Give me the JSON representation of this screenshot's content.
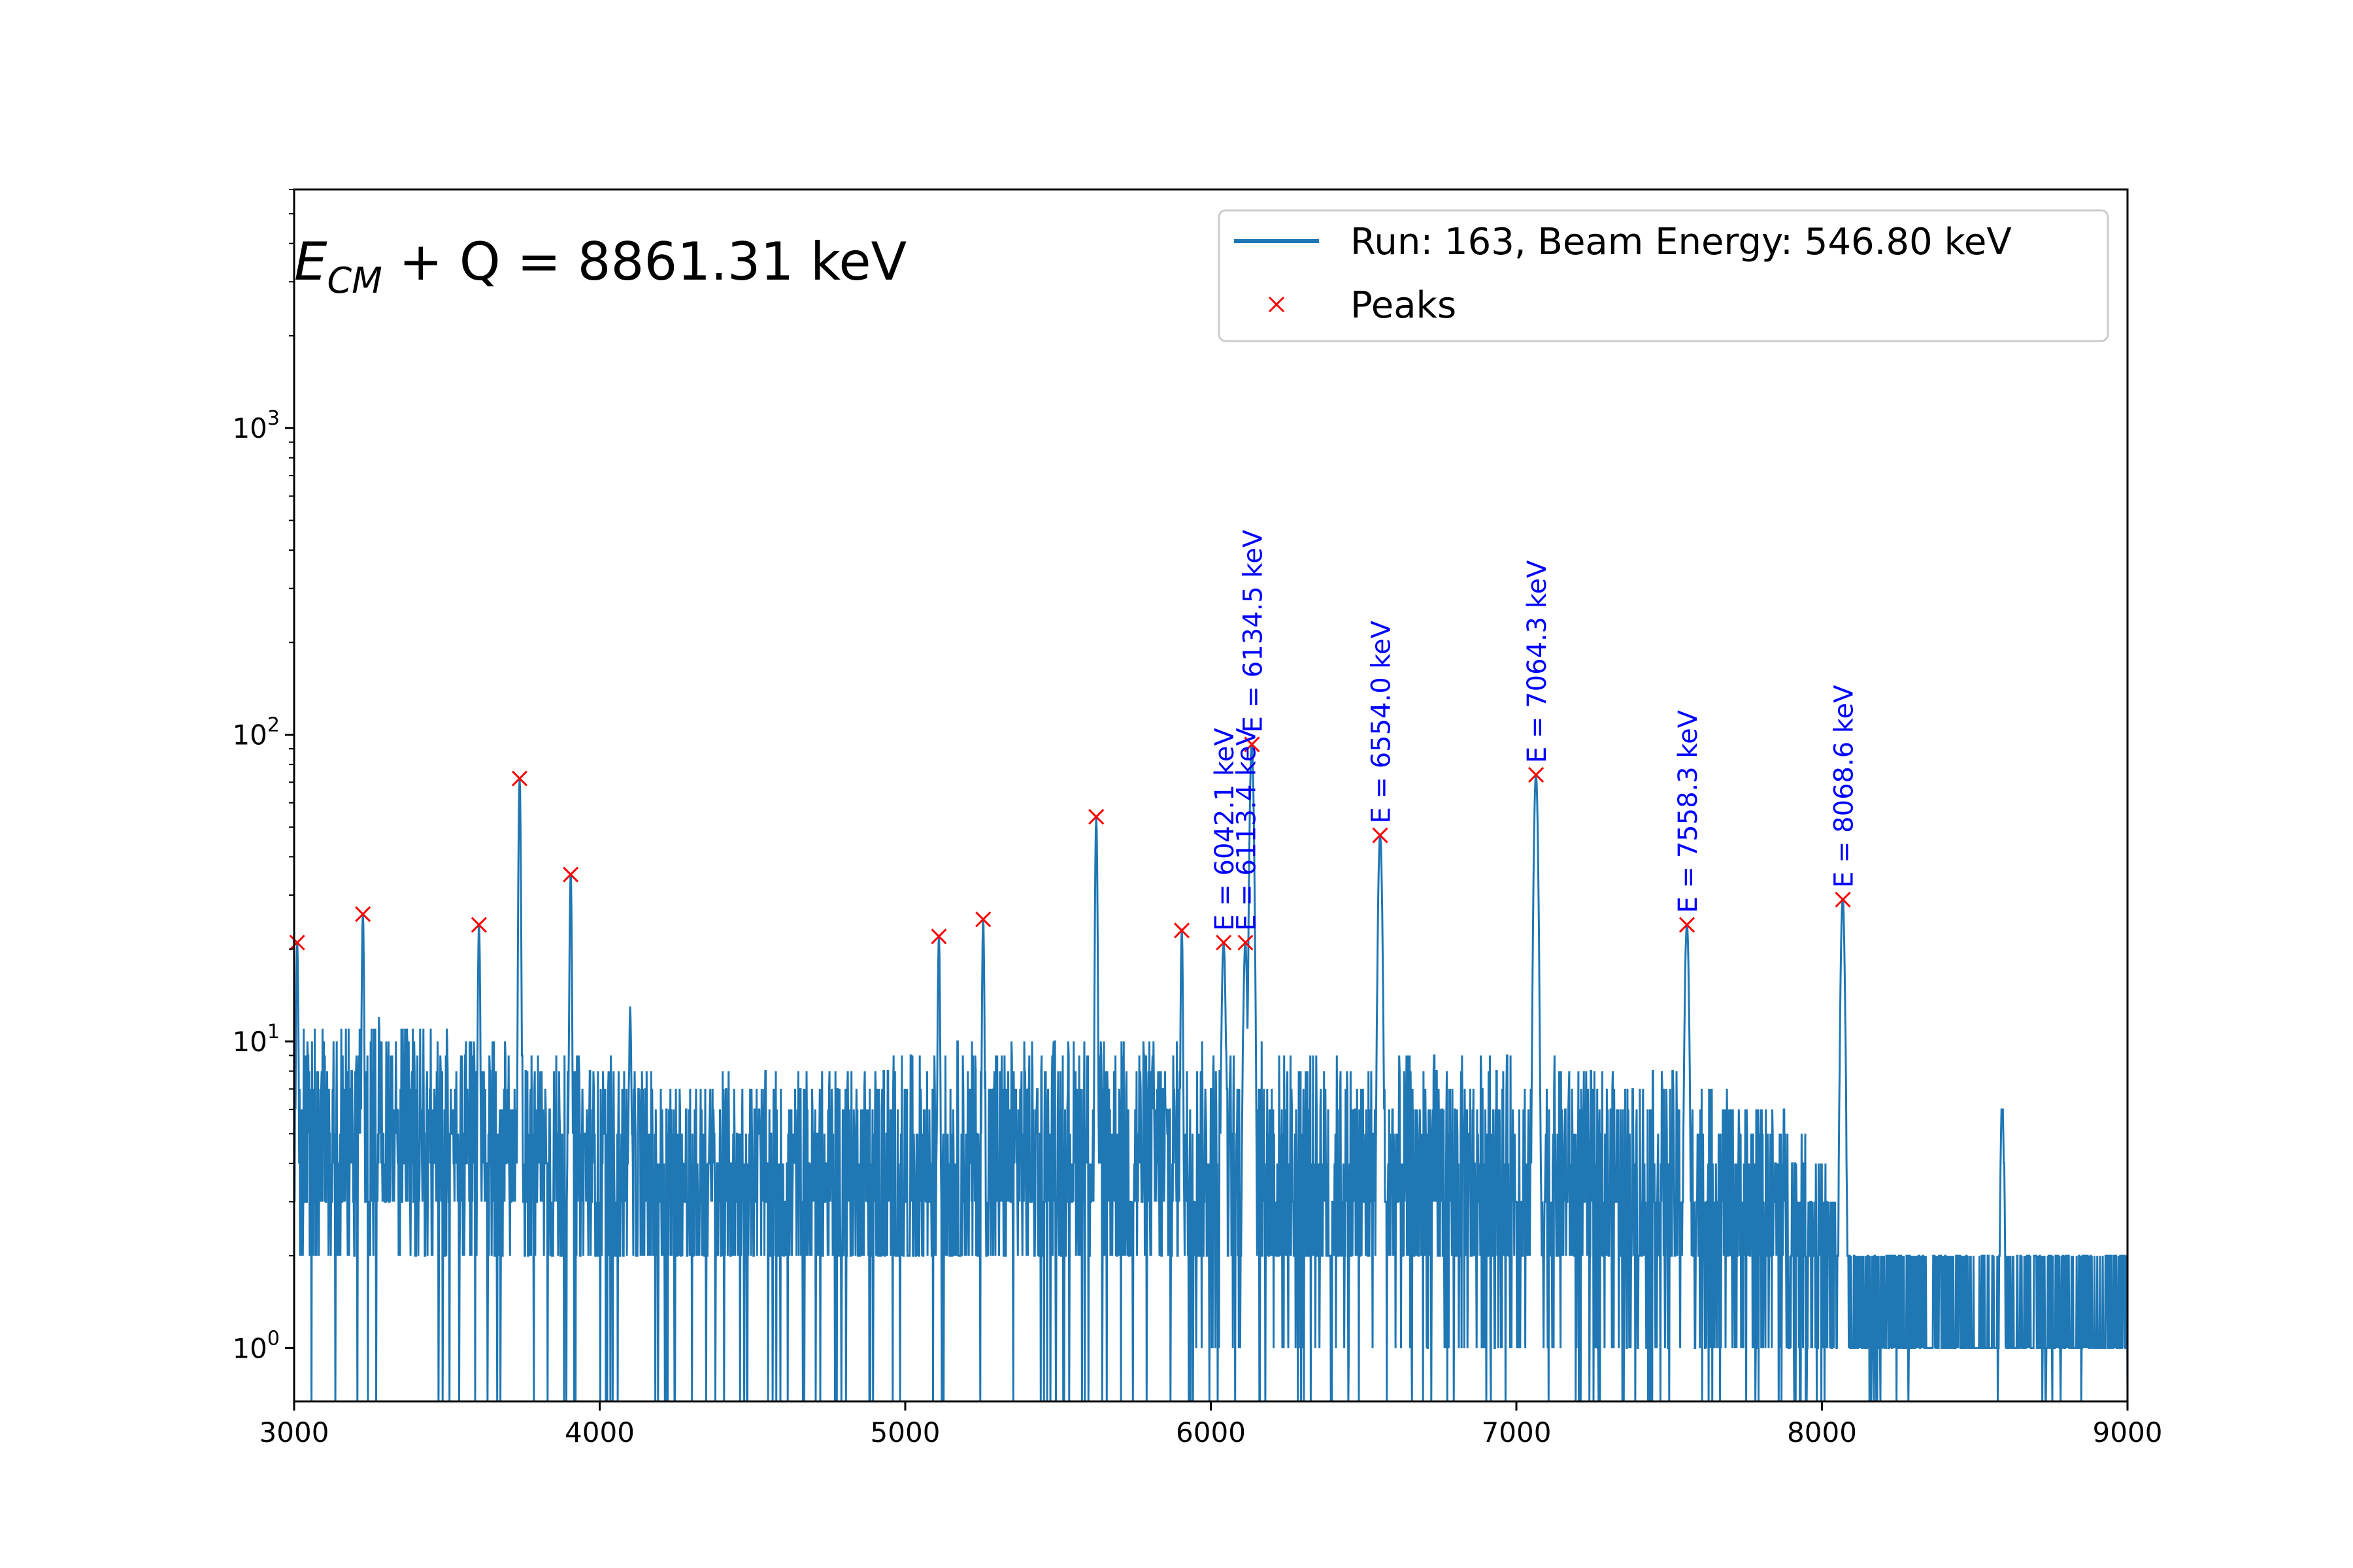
{
  "chart_data": {
    "type": "line",
    "title": "",
    "xlabel": "",
    "ylabel": "",
    "xlim": [
      3000,
      9000
    ],
    "ylim": [
      0.67,
      6000
    ],
    "yscale": "log",
    "grid": false,
    "legend_position": "top-right",
    "x_ticks": [
      "3000",
      "4000",
      "5000",
      "6000",
      "7000",
      "8000",
      "9000"
    ],
    "y_ticks": [
      {
        "base": "10",
        "exp": "0"
      },
      {
        "base": "10",
        "exp": "1"
      },
      {
        "base": "10",
        "exp": "2"
      },
      {
        "base": "10",
        "exp": "3"
      }
    ],
    "annotation": {
      "sym": "E",
      "sub": "CM",
      "text": " + Q = 8861.31 keV"
    },
    "series": [
      {
        "name": "Run: 163, Beam Energy: 546.80 keV",
        "color": "#1f77b4",
        "marker": "line"
      },
      {
        "name": "Peaks",
        "color": "#ff0000",
        "marker": "x"
      }
    ],
    "background_levels": [
      {
        "x": 3000,
        "lo": 2,
        "hi": 11
      },
      {
        "x": 3300,
        "lo": 2,
        "hi": 12
      },
      {
        "x": 3700,
        "lo": 2,
        "hi": 10
      },
      {
        "x": 4200,
        "lo": 1.5,
        "hi": 8
      },
      {
        "x": 4700,
        "lo": 1.5,
        "hi": 8
      },
      {
        "x": 5200,
        "lo": 1.5,
        "hi": 10
      },
      {
        "x": 5600,
        "lo": 2,
        "hi": 11
      },
      {
        "x": 6000,
        "lo": 1.3,
        "hi": 10
      },
      {
        "x": 6500,
        "lo": 1.3,
        "hi": 9
      },
      {
        "x": 7000,
        "lo": 1.3,
        "hi": 9
      },
      {
        "x": 7500,
        "lo": 1.2,
        "hi": 8
      },
      {
        "x": 7900,
        "lo": 1.2,
        "hi": 6
      },
      {
        "x": 8100,
        "lo": 1,
        "hi": 2
      },
      {
        "x": 9000,
        "lo": 1,
        "hi": 2
      }
    ],
    "spikes": [
      {
        "x": 3010,
        "y": 21
      },
      {
        "x": 3225,
        "y": 26
      },
      {
        "x": 3605,
        "y": 24
      },
      {
        "x": 3738,
        "y": 72
      },
      {
        "x": 3905,
        "y": 35
      },
      {
        "x": 4100,
        "y": 13
      },
      {
        "x": 5110,
        "y": 22
      },
      {
        "x": 5255,
        "y": 25
      },
      {
        "x": 5625,
        "y": 54
      },
      {
        "x": 5905,
        "y": 23
      },
      {
        "x": 6042,
        "y": 21
      },
      {
        "x": 6113,
        "y": 21
      },
      {
        "x": 6134,
        "y": 93
      },
      {
        "x": 6554,
        "y": 47
      },
      {
        "x": 7064,
        "y": 74
      },
      {
        "x": 7558,
        "y": 24
      },
      {
        "x": 8068,
        "y": 29
      },
      {
        "x": 8590,
        "y": 6
      }
    ],
    "peaks": [
      {
        "x": 3010,
        "y": 21
      },
      {
        "x": 3225,
        "y": 26
      },
      {
        "x": 3605,
        "y": 24
      },
      {
        "x": 3738,
        "y": 72
      },
      {
        "x": 3905,
        "y": 35
      },
      {
        "x": 5110,
        "y": 22
      },
      {
        "x": 5255,
        "y": 25
      },
      {
        "x": 5625,
        "y": 54
      },
      {
        "x": 5905,
        "y": 23
      },
      {
        "x": 6042.1,
        "y": 21,
        "label": "E = 6042.1 keV"
      },
      {
        "x": 6113.4,
        "y": 21,
        "label": "E = 6113.4 keV"
      },
      {
        "x": 6134.5,
        "y": 93,
        "label": "E = 6134.5 keV"
      },
      {
        "x": 6554.0,
        "y": 47,
        "label": "E = 6554.0 keV"
      },
      {
        "x": 7064.3,
        "y": 74,
        "label": "E = 7064.3 keV"
      },
      {
        "x": 7558.3,
        "y": 24,
        "label": "E = 7558.3 keV"
      },
      {
        "x": 8068.6,
        "y": 29,
        "label": "E = 8068.6 keV"
      }
    ]
  }
}
